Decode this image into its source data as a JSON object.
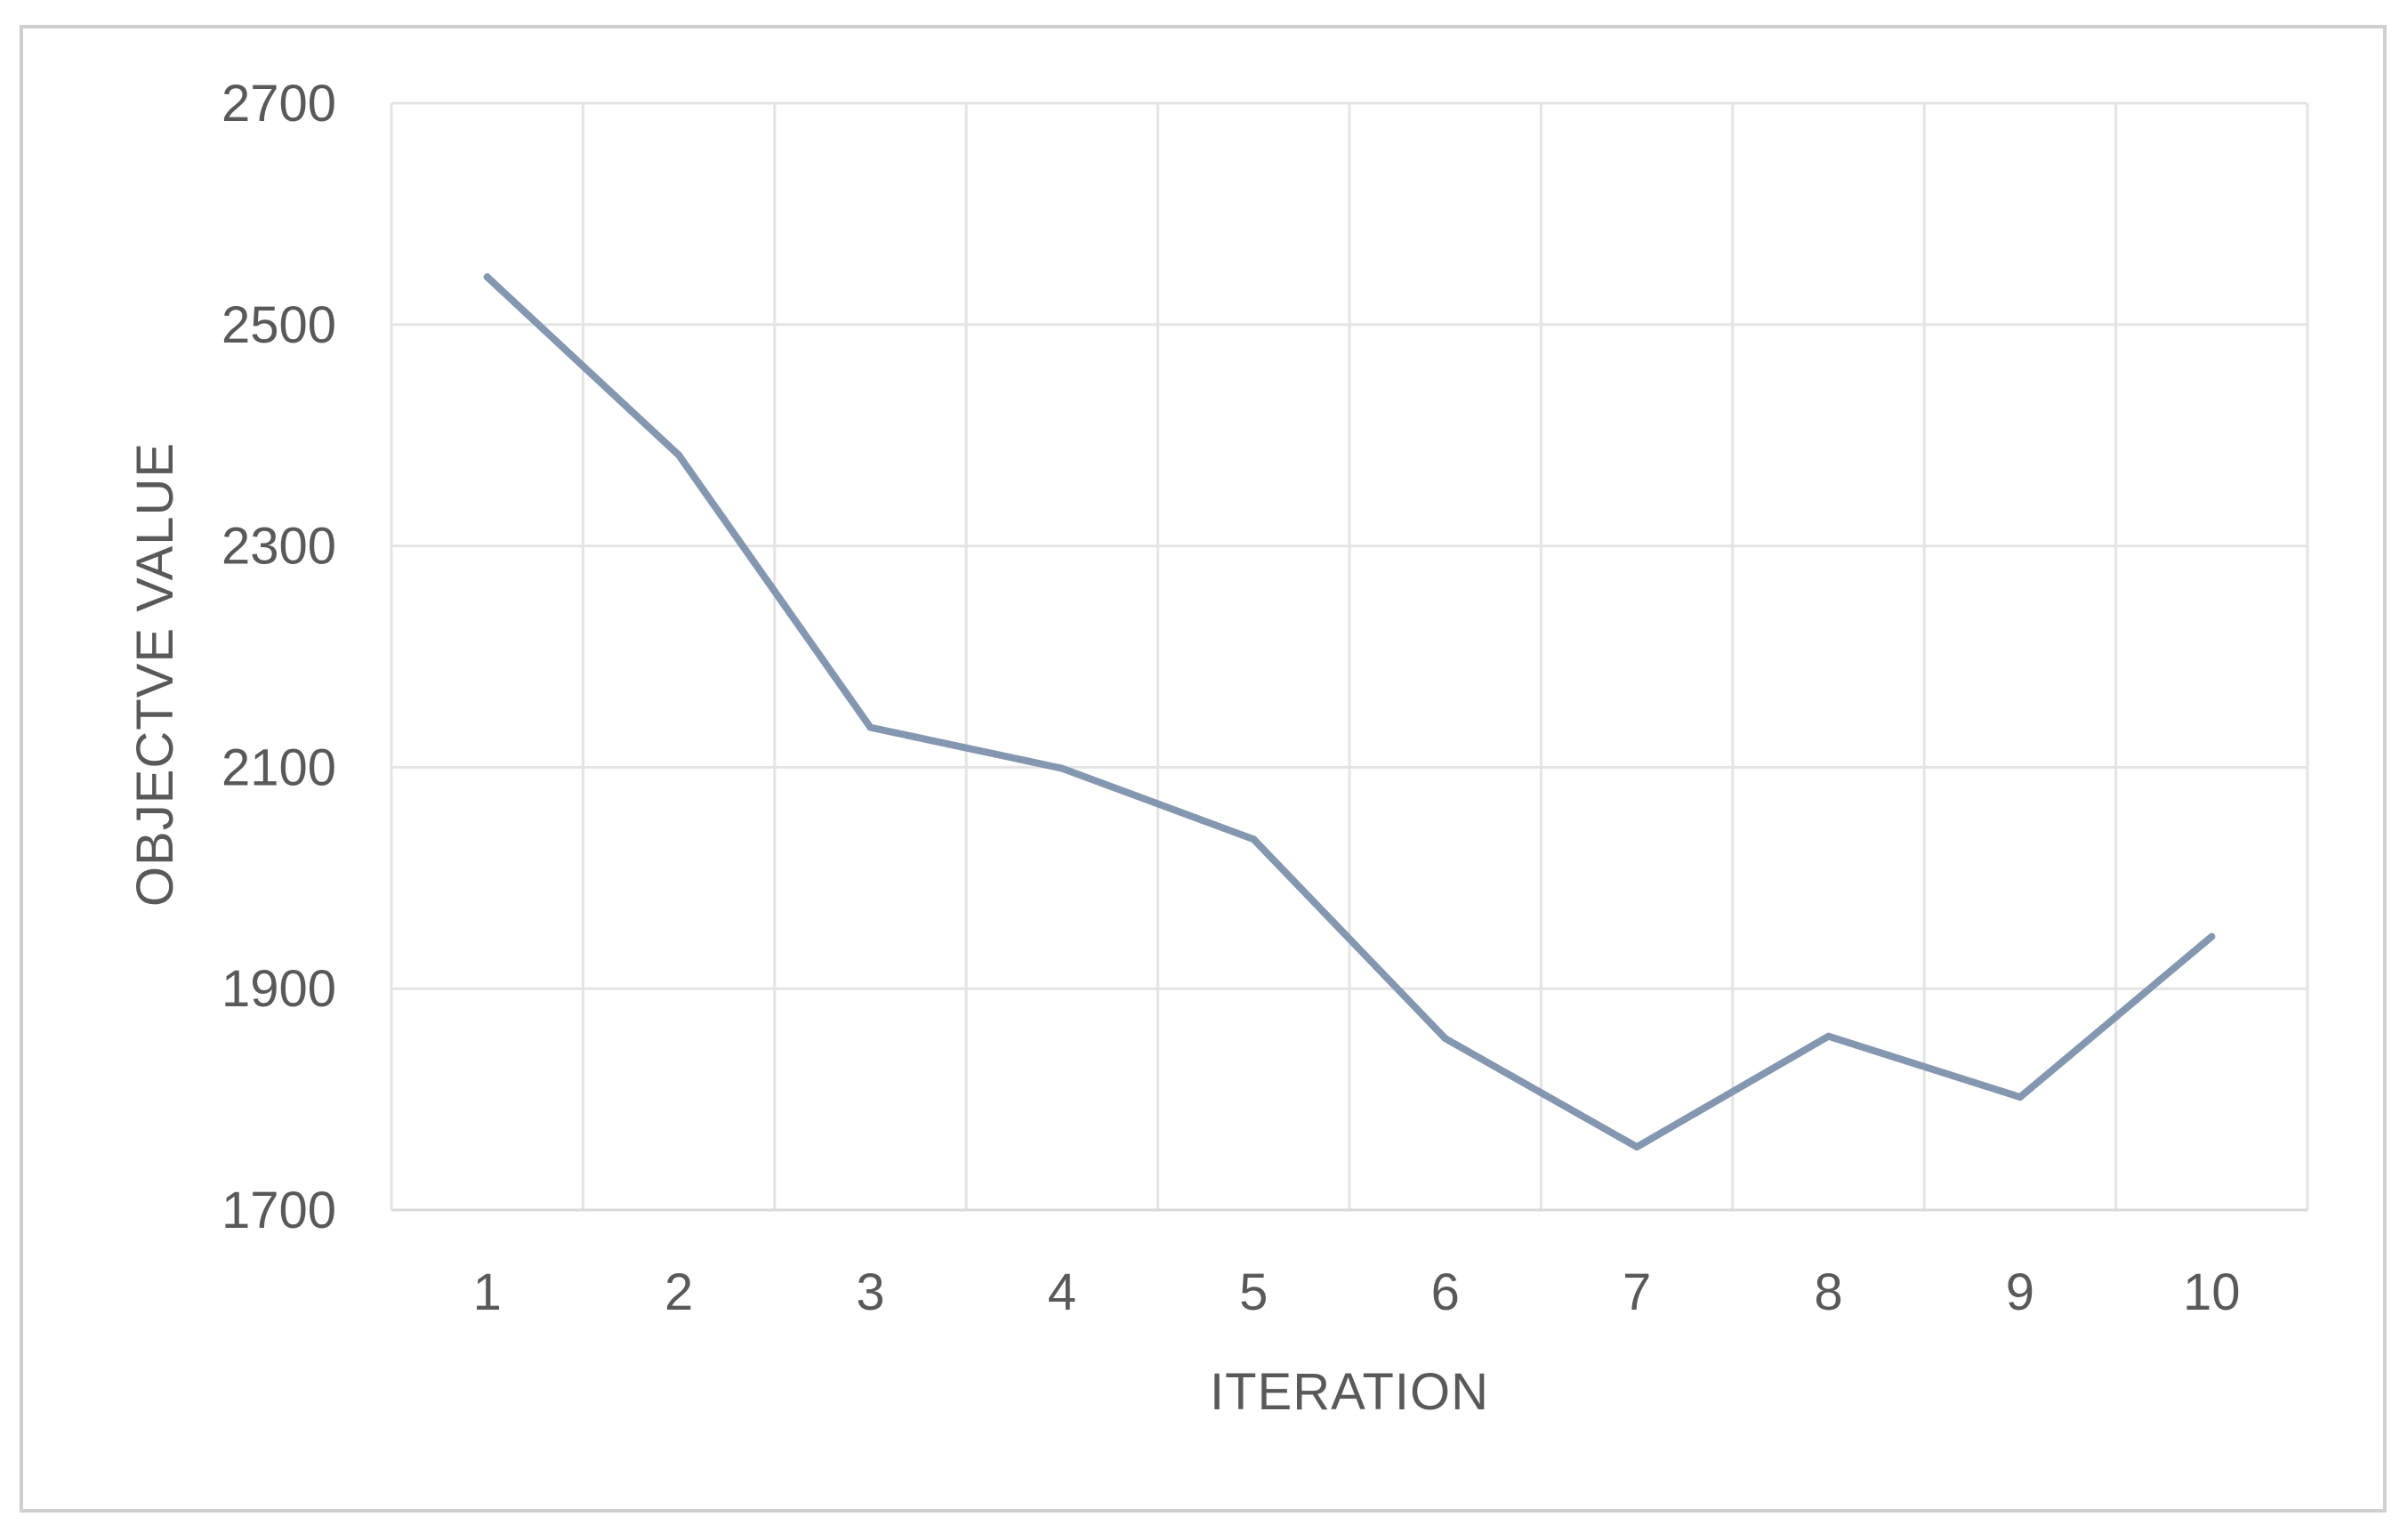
{
  "chart_data": {
    "type": "line",
    "title": "",
    "xlabel": "ITERATION",
    "ylabel": "OBJECTVE VALUE",
    "categories": [
      "1",
      "2",
      "3",
      "4",
      "5",
      "6",
      "7",
      "8",
      "9",
      "10"
    ],
    "series": [
      {
        "values": [
          2543,
          2382,
          2136,
          2099,
          2035,
          1855,
          1757,
          1857,
          1802,
          1947
        ],
        "color": "#8497b0"
      }
    ],
    "ylim": [
      1700,
      2700
    ],
    "yticks": [
      1700,
      1900,
      2100,
      2300,
      2500,
      2700
    ],
    "grid": true,
    "legend": "none",
    "colors": {
      "line": "#8497b0",
      "grid": "#e4e4e4",
      "axis": "#d9d9d9",
      "text": "#595959",
      "border": "#d0d0d0"
    }
  }
}
